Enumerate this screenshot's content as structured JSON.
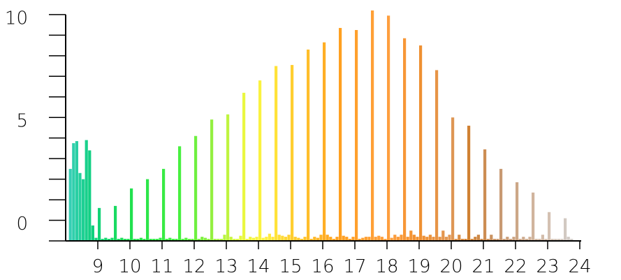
{
  "chart_data": {
    "type": "histogram",
    "bins": [
      8.0,
      8.1,
      8.2,
      8.3,
      8.4,
      8.5,
      8.6,
      8.7,
      8.8,
      8.9,
      9.0,
      9.1,
      9.2,
      9.3,
      9.4,
      9.5,
      9.6,
      9.7,
      9.8,
      9.9,
      10.0,
      10.1,
      10.2,
      10.3,
      10.4,
      10.5,
      10.6,
      10.7,
      10.8,
      10.9,
      11.0,
      11.1,
      11.2,
      11.3,
      11.4,
      11.5,
      11.6,
      11.7,
      11.8,
      11.9,
      12.0,
      12.1,
      12.2,
      12.3,
      12.4,
      12.5,
      12.6,
      12.7,
      12.8,
      12.9,
      13.0,
      13.1,
      13.2,
      13.3,
      13.4,
      13.5,
      13.6,
      13.7,
      13.8,
      13.9,
      14.0,
      14.1,
      14.2,
      14.3,
      14.4,
      14.5,
      14.6,
      14.7,
      14.8,
      14.9,
      15.0,
      15.1,
      15.2,
      15.3,
      15.4,
      15.5,
      15.6,
      15.7,
      15.8,
      15.9,
      16.0,
      16.1,
      16.2,
      16.3,
      16.4,
      16.5,
      16.6,
      16.7,
      16.8,
      16.9,
      17.0,
      17.1,
      17.2,
      17.3,
      17.4,
      17.5,
      17.6,
      17.7,
      17.8,
      17.9,
      18.0,
      18.1,
      18.2,
      18.3,
      18.4,
      18.5,
      18.6,
      18.7,
      18.8,
      18.9,
      19.0,
      19.1,
      19.2,
      19.3,
      19.4,
      19.5,
      19.6,
      19.7,
      19.8,
      19.9,
      20.0,
      20.1,
      20.2,
      20.3,
      20.4,
      20.5,
      20.6,
      20.7,
      20.8,
      20.9,
      21.0,
      21.1,
      21.2,
      21.3,
      21.4,
      21.5,
      21.6,
      21.7,
      21.8,
      21.9,
      22.0,
      22.1,
      22.2,
      22.3,
      22.4,
      22.5,
      22.6,
      22.7,
      22.8,
      22.9,
      23.0,
      23.1,
      23.2,
      23.3,
      23.4,
      23.5,
      23.6,
      23.7,
      23.8,
      23.9,
      24.0
    ],
    "values": [
      0,
      3.5,
      4.75,
      4.85,
      3.3,
      3.0,
      4.9,
      4.4,
      0.75,
      0.15,
      1.6,
      0.1,
      0.15,
      0.1,
      0.15,
      1.7,
      0.1,
      0.15,
      0.1,
      0.1,
      2.55,
      0.1,
      0.1,
      0.15,
      0.1,
      3.0,
      0.1,
      0.1,
      0.1,
      0.15,
      3.5,
      0.1,
      0.15,
      0.1,
      0.1,
      4.6,
      0.1,
      0.15,
      0.1,
      0.1,
      5.1,
      0.1,
      0.2,
      0.15,
      0.1,
      5.9,
      0.1,
      0.1,
      0.1,
      0.3,
      6.15,
      0.2,
      0.1,
      0.1,
      0.25,
      7.2,
      0.1,
      0.2,
      0.15,
      0.2,
      7.8,
      0.15,
      0.2,
      0.35,
      0.2,
      8.5,
      0.3,
      0.25,
      0.2,
      0.3,
      8.55,
      0.2,
      0.15,
      0.1,
      0.2,
      9.3,
      0.1,
      0.2,
      0.15,
      0.3,
      9.65,
      0.3,
      0.2,
      0.1,
      0.2,
      10.35,
      0.25,
      0.2,
      0.1,
      0.2,
      10.25,
      0.1,
      0.15,
      0.2,
      0.2,
      11.2,
      0.2,
      0.25,
      0.2,
      0.1,
      10.95,
      0.15,
      0.3,
      0.2,
      0.3,
      9.85,
      0.2,
      0.5,
      0.3,
      0.2,
      9.5,
      0.25,
      0.2,
      0.3,
      0.2,
      8.3,
      0.2,
      0.5,
      0.2,
      0.3,
      6.0,
      0.1,
      0.3,
      0.1,
      0.1,
      5.6,
      0.1,
      0.2,
      0.3,
      0.1,
      4.45,
      0.1,
      0.3,
      0.1,
      0.1,
      3.5,
      0.1,
      0.2,
      0.1,
      0.2,
      2.85,
      0.1,
      0.2,
      0.1,
      0.2,
      2.35,
      0.1,
      0.1,
      0.3,
      0.1,
      1.4,
      0.1,
      0.1,
      0.1,
      0.1,
      1.1,
      0.2,
      0.1,
      0,
      0
    ],
    "colormap": [
      {
        "at": 8.0,
        "color": "#3ecfc0"
      },
      {
        "at": 8.8,
        "color": "#10d080"
      },
      {
        "at": 10.0,
        "color": "#20e050"
      },
      {
        "at": 11.5,
        "color": "#44f040"
      },
      {
        "at": 12.5,
        "color": "#90f040"
      },
      {
        "at": 13.5,
        "color": "#e8f840"
      },
      {
        "at": 14.2,
        "color": "#fff040"
      },
      {
        "at": 15.0,
        "color": "#ffd030"
      },
      {
        "at": 16.5,
        "color": "#ffa020"
      },
      {
        "at": 18.0,
        "color": "#ffa040"
      },
      {
        "at": 19.0,
        "color": "#f09030"
      },
      {
        "at": 20.0,
        "color": "#e09858"
      },
      {
        "at": 20.5,
        "color": "#d08030"
      },
      {
        "at": 21.5,
        "color": "#c89870"
      },
      {
        "at": 23.0,
        "color": "#d4c0b0"
      },
      {
        "at": 24.0,
        "color": "#d0d0d0"
      }
    ],
    "xlim": [
      8,
      24
    ],
    "xticks": [
      9,
      10,
      11,
      12,
      13,
      14,
      15,
      16,
      17,
      18,
      19,
      20,
      21,
      22,
      23,
      24
    ],
    "ylim": [
      0,
      11.2
    ],
    "yticks": [
      0,
      5,
      10
    ],
    "yminor_ticks": [
      0,
      1,
      2,
      3,
      4,
      5,
      6,
      7,
      8,
      9,
      10,
      11
    ]
  }
}
